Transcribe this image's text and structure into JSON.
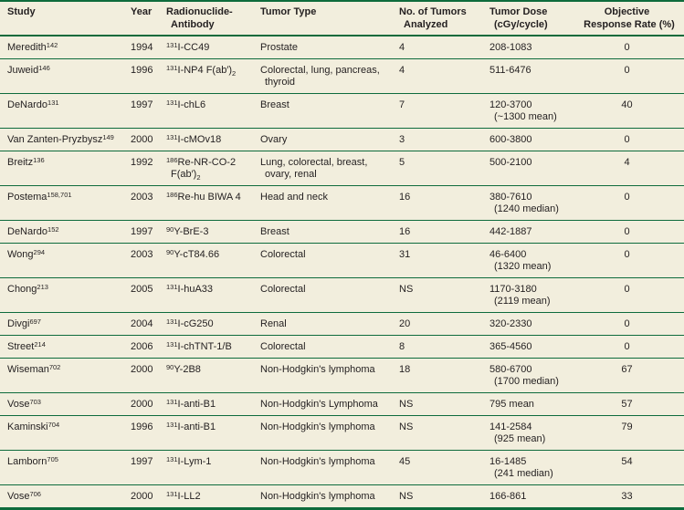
{
  "colors": {
    "background": "#f2eedd",
    "rule_green": "#0e6b3c",
    "text": "#231f20"
  },
  "table": {
    "columns": [
      {
        "id": "study",
        "label": "Study"
      },
      {
        "id": "year",
        "label": "Year"
      },
      {
        "id": "radionuclide",
        "label": "Radionuclide-\nAntibody"
      },
      {
        "id": "tumor_type",
        "label": "Tumor Type"
      },
      {
        "id": "num_tumors",
        "label": "No. of Tumors\nAnalyzed"
      },
      {
        "id": "tumor_dose",
        "label": "Tumor Dose\n(cGy/cycle)"
      },
      {
        "id": "orr",
        "label": "Objective\nResponse Rate (%)"
      }
    ],
    "rows": [
      {
        "study": "Meredith^{142}",
        "year": "1994",
        "radionuclide": "^{131}I-CC49",
        "tumor_type": "Prostate",
        "num_tumors": "4",
        "tumor_dose": "208-1083",
        "orr": "0"
      },
      {
        "study": "Juweid^{146}",
        "year": "1996",
        "radionuclide": "^{131}I-NP4 F(ab′)~{2}",
        "tumor_type": "Colorectal, lung, pancreas,\nthyroid",
        "num_tumors": "4",
        "tumor_dose": "511-6476",
        "orr": "0"
      },
      {
        "study": "DeNardo^{131}",
        "year": "1997",
        "radionuclide": "^{131}I-chL6",
        "tumor_type": "Breast",
        "num_tumors": "7",
        "tumor_dose": "120-3700\n(~1300 mean)",
        "orr": "40"
      },
      {
        "study": "Van Zanten-Pryzbysz^{149}",
        "year": "2000",
        "radionuclide": "^{131}I-cMOv18",
        "tumor_type": "Ovary",
        "num_tumors": "3",
        "tumor_dose": "600-3800",
        "orr": "0"
      },
      {
        "study": "Breitz^{136}",
        "year": "1992",
        "radionuclide": "^{186}Re-NR-CO-2\nF(ab′)~{2}",
        "tumor_type": "Lung, colorectal, breast,\novary, renal",
        "num_tumors": "5",
        "tumor_dose": "500-2100",
        "orr": "4"
      },
      {
        "study": "Postema^{158,701}",
        "year": "2003",
        "radionuclide": "^{186}Re-hu BIWA 4",
        "tumor_type": "Head and neck",
        "num_tumors": "16",
        "tumor_dose": "380-7610\n(1240 median)",
        "orr": "0"
      },
      {
        "study": "DeNardo^{152}",
        "year": "1997",
        "radionuclide": "^{90}Y-BrE-3",
        "tumor_type": "Breast",
        "num_tumors": "16",
        "tumor_dose": "442-1887",
        "orr": "0"
      },
      {
        "study": "Wong^{294}",
        "year": "2003",
        "radionuclide": "^{90}Y-cT84.66",
        "tumor_type": "Colorectal",
        "num_tumors": "31",
        "tumor_dose": "46-6400\n(1320 mean)",
        "orr": "0"
      },
      {
        "study": "Chong^{213}",
        "year": "2005",
        "radionuclide": "^{131}I-huA33",
        "tumor_type": "Colorectal",
        "num_tumors": "NS",
        "tumor_dose": "1170-3180\n(2119 mean)",
        "orr": "0"
      },
      {
        "study": "Divgi^{697}",
        "year": "2004",
        "radionuclide": "^{131}I-cG250",
        "tumor_type": "Renal",
        "num_tumors": "20",
        "tumor_dose": "320-2330",
        "orr": "0"
      },
      {
        "study": "Street^{214}",
        "year": "2006",
        "radionuclide": "^{131}I-chTNT-1/B",
        "tumor_type": "Colorectal",
        "num_tumors": "8",
        "tumor_dose": "365-4560",
        "orr": "0"
      },
      {
        "study": "Wiseman^{702}",
        "year": "2000",
        "radionuclide": "^{90}Y-2B8",
        "tumor_type": "Non-Hodgkin's lymphoma",
        "num_tumors": "18",
        "tumor_dose": "580-6700\n(1700 median)",
        "orr": "67"
      },
      {
        "study": "Vose^{703}",
        "year": "2000",
        "radionuclide": "^{131}I-anti-B1",
        "tumor_type": "Non-Hodgkin's Lymphoma",
        "num_tumors": "NS",
        "tumor_dose": "795 mean",
        "orr": "57"
      },
      {
        "study": "Kaminski^{704}",
        "year": "1996",
        "radionuclide": "^{131}I-anti-B1",
        "tumor_type": "Non-Hodgkin's lymphoma",
        "num_tumors": "NS",
        "tumor_dose": "141-2584\n(925 mean)",
        "orr": "79"
      },
      {
        "study": "Lamborn^{705}",
        "year": "1997",
        "radionuclide": "^{131}I-Lym-1",
        "tumor_type": "Non-Hodgkin's lymphoma",
        "num_tumors": "45",
        "tumor_dose": "16-1485\n(241 median)",
        "orr": "54"
      },
      {
        "study": "Vose^{706}",
        "year": "2000",
        "radionuclide": "^{131}I-LL2",
        "tumor_type": "Non-Hodgkin's lymphoma",
        "num_tumors": "NS",
        "tumor_dose": "166-861",
        "orr": "33"
      }
    ]
  }
}
